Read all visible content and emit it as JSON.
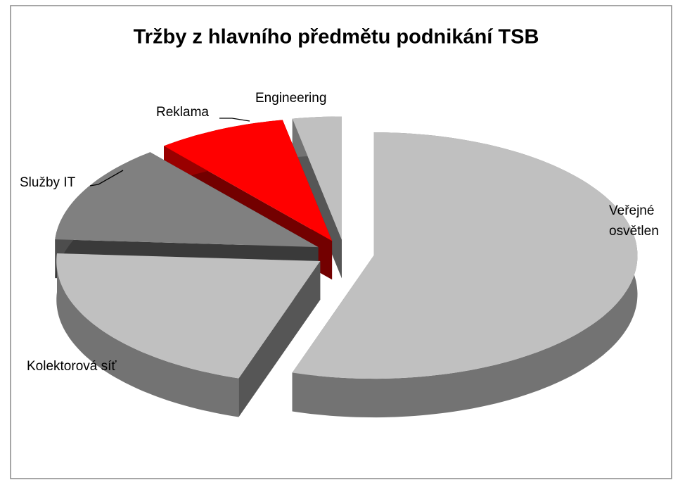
{
  "chart_data": {
    "type": "pie",
    "title": "Tržby z hlavního předmětu podnikání TSB",
    "categories": [
      "Veřejné osvětlen",
      "Kolektorová síť",
      "Služby IT",
      "Reklama",
      "Engineering"
    ],
    "values": [
      55,
      21,
      13,
      8,
      3
    ],
    "colors": [
      "#c0c0c0",
      "#c0c0c0",
      "#808080",
      "#ff0000",
      "#c0c0c0"
    ]
  }
}
